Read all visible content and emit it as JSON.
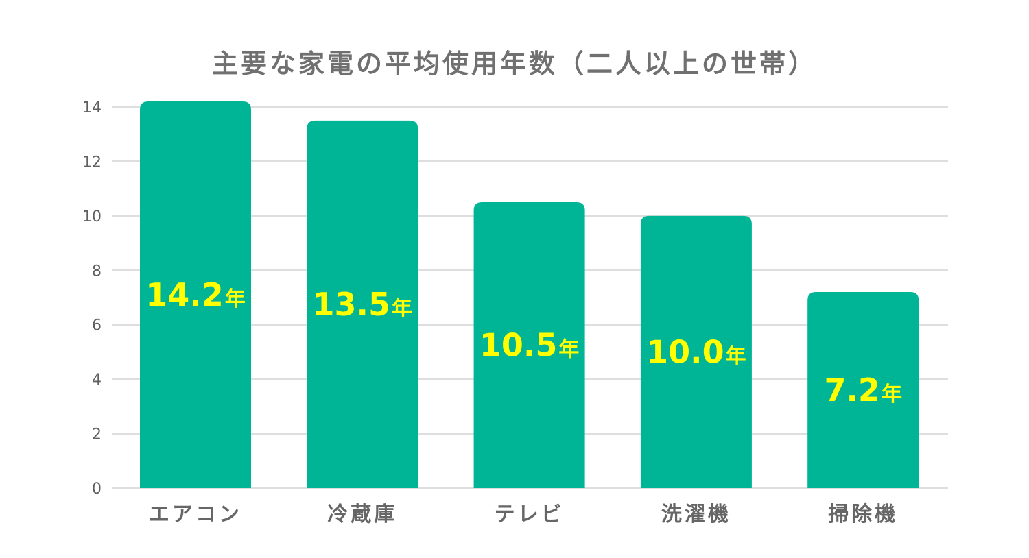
{
  "chart_data": {
    "type": "bar",
    "title": "主要な家電の平均使用年数（二人以上の世帯）",
    "categories": [
      "エアコン",
      "冷蔵庫",
      "テレビ",
      "洗濯機",
      "掃除機"
    ],
    "values": [
      14.2,
      13.5,
      10.5,
      10.0,
      7.2
    ],
    "data_labels": [
      "14.2",
      "13.5",
      "10.5",
      "10.0",
      "7.2"
    ],
    "data_label_unit": "年",
    "ylim": [
      0,
      14
    ],
    "yticks": [
      0,
      2,
      4,
      6,
      8,
      10,
      12,
      14
    ],
    "xlabel": "",
    "ylabel": "",
    "grid": true,
    "legend": "none",
    "colors": {
      "bar": "#00b496",
      "data_label": "#ffff00",
      "grid": "#dedede"
    }
  }
}
